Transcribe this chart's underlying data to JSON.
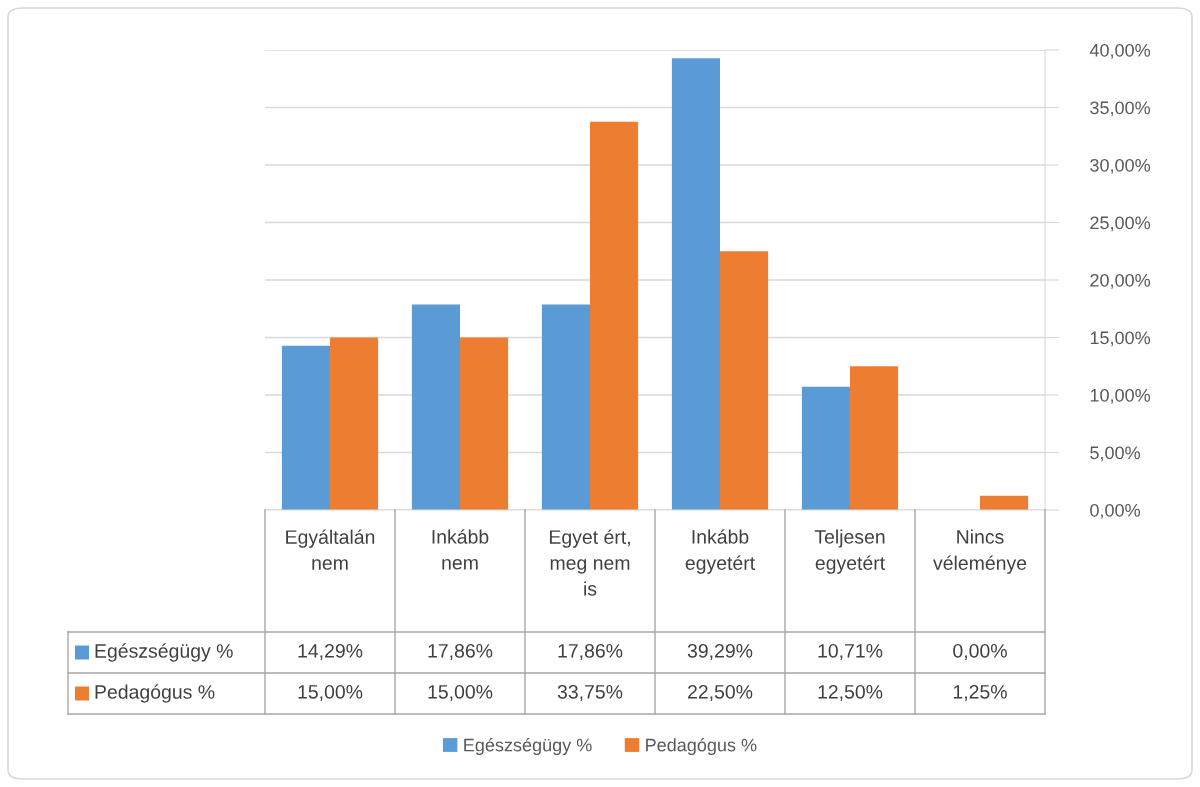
{
  "chart_data": {
    "type": "bar",
    "categories": [
      "Egyáltalán nem",
      "Inkább nem",
      "Egyet ért, meg nem is",
      "Inkább egyetért",
      "Teljesen egyetért",
      "Nincs véleménye"
    ],
    "series": [
      {
        "name": "Egészségügy %",
        "color": "#5b9bd5",
        "values": [
          14.29,
          17.86,
          17.86,
          39.29,
          10.71,
          0.0
        ],
        "value_labels": [
          "14,29%",
          "17,86%",
          "17,86%",
          "39,29%",
          "10,71%",
          "0,00%"
        ]
      },
      {
        "name": "Pedagógus %",
        "color": "#ed7d31",
        "values": [
          15.0,
          15.0,
          33.75,
          22.5,
          12.5,
          1.25
        ],
        "value_labels": [
          "15,00%",
          "15,00%",
          "33,75%",
          "22,50%",
          "12,50%",
          "1,25%"
        ]
      }
    ],
    "ylim": [
      0,
      40
    ],
    "yticks": [
      {
        "value": 0,
        "label": "0,00%"
      },
      {
        "value": 5,
        "label": "5,00%"
      },
      {
        "value": 10,
        "label": "10,00%"
      },
      {
        "value": 15,
        "label": "15,00%"
      },
      {
        "value": 20,
        "label": "20,00%"
      },
      {
        "value": 25,
        "label": "25,00%"
      },
      {
        "value": 30,
        "label": "30,00%"
      },
      {
        "value": 35,
        "label": "35,00%"
      },
      {
        "value": 40,
        "label": "40,00%"
      }
    ],
    "grid": "y",
    "legend": "bottom"
  }
}
